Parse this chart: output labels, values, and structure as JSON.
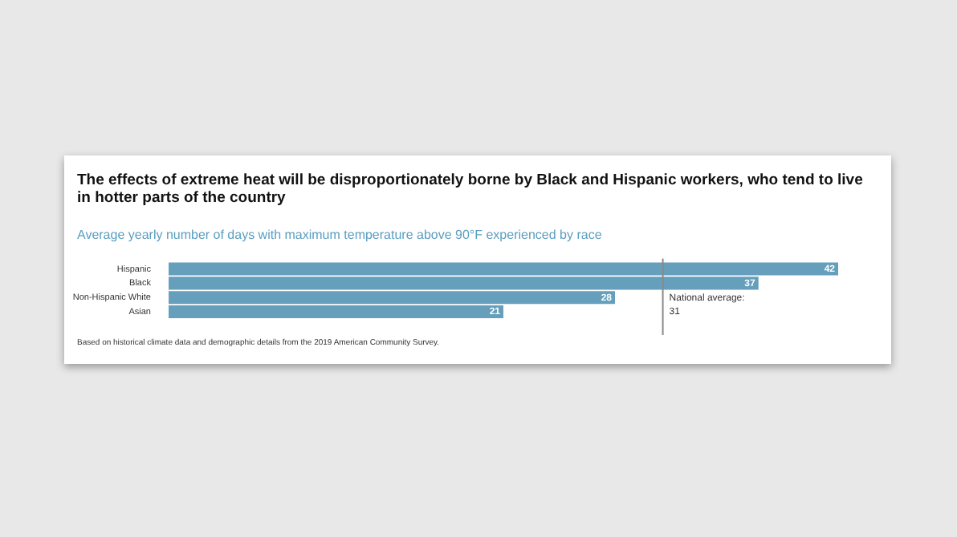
{
  "chart_data": {
    "type": "bar",
    "orientation": "horizontal",
    "title": "The effects of extreme heat will be disproportionately borne by Black and Hispanic workers, who tend to live in hotter parts of the country",
    "subtitle": "Average yearly number of days with maximum temperature above 90°F experienced by race",
    "categories": [
      "Hispanic",
      "Black",
      "Non-Hispanic White",
      "Asian"
    ],
    "values": [
      42,
      37,
      28,
      21
    ],
    "color": "#659fbb",
    "data_labels": true,
    "legend": false,
    "ref_lines": [
      {
        "axis": "x",
        "value": 31,
        "label": "National average:\n31",
        "color": "#8a8a8a"
      }
    ],
    "annotations": [
      "Based on historical climate data and demographic details from the 2019 American Community Survey."
    ]
  }
}
